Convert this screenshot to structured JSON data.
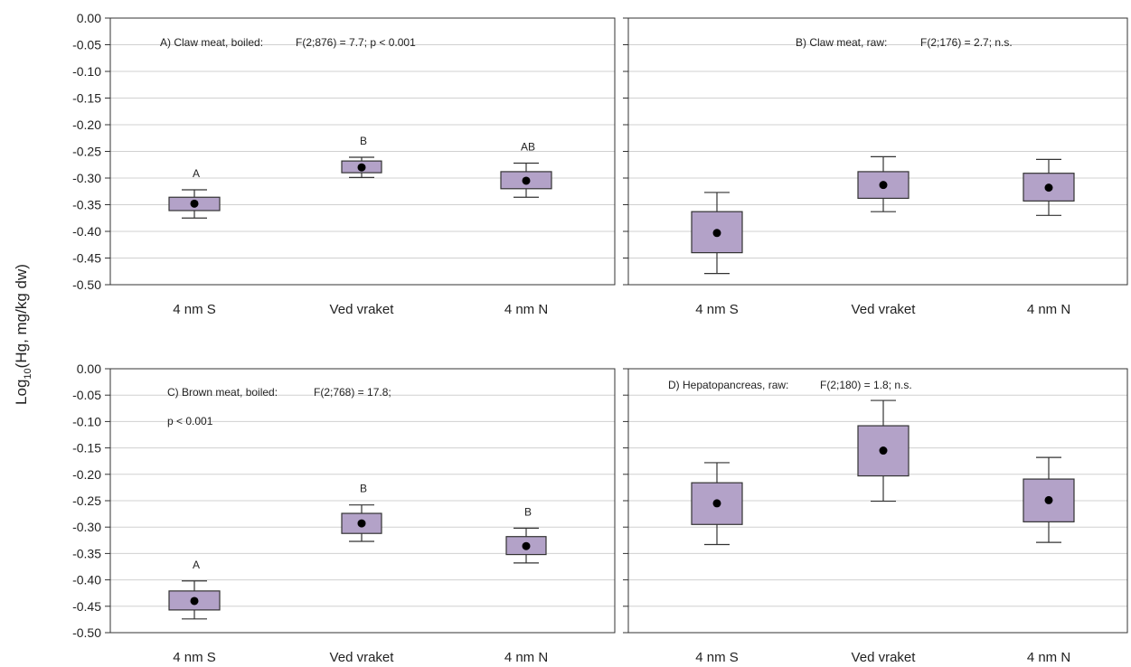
{
  "chart_data": {
    "type": "box",
    "ylabel": {
      "prefix": "Log",
      "sub": "10",
      "suffix": "(Hg, mg/kg dw)"
    },
    "ylim": [
      -0.5,
      0.0
    ],
    "yticks": [
      "0.00",
      "-0.05",
      "-0.10",
      "-0.15",
      "-0.20",
      "-0.25",
      "-0.30",
      "-0.35",
      "-0.40",
      "-0.45",
      "-0.50"
    ],
    "grid": true,
    "colors": {
      "box": "#b3a2c8",
      "line": "#333333",
      "grid": "#d0d0d0"
    },
    "panels": [
      {
        "id": "A",
        "annotation_label": "A) Claw meat, boiled:",
        "annotation_stats": "F(2;876) = 7.7; p < 0.001",
        "annotation_line2": "",
        "categories": [
          "4 nm S",
          "Ved vraket",
          "4 nm N"
        ],
        "groups": [
          {
            "mean": -0.348,
            "box": [
              -0.361,
              -0.336
            ],
            "whisker": [
              -0.375,
              -0.322
            ],
            "letter": "A"
          },
          {
            "mean": -0.28,
            "box": [
              -0.29,
              -0.268
            ],
            "whisker": [
              -0.299,
              -0.261
            ],
            "letter": "B"
          },
          {
            "mean": -0.305,
            "box": [
              -0.32,
              -0.288
            ],
            "whisker": [
              -0.336,
              -0.272
            ],
            "letter": "AB"
          }
        ]
      },
      {
        "id": "B",
        "annotation_label": "B) Claw meat, raw:",
        "annotation_stats": "F(2;176) = 2.7; n.s.",
        "annotation_line2": "",
        "categories": [
          "4 nm S",
          "Ved vraket",
          "4 nm N"
        ],
        "groups": [
          {
            "mean": -0.403,
            "box": [
              -0.44,
              -0.363
            ],
            "whisker": [
              -0.479,
              -0.327
            ],
            "letter": ""
          },
          {
            "mean": -0.313,
            "box": [
              -0.338,
              -0.288
            ],
            "whisker": [
              -0.363,
              -0.26
            ],
            "letter": ""
          },
          {
            "mean": -0.318,
            "box": [
              -0.343,
              -0.291
            ],
            "whisker": [
              -0.37,
              -0.265
            ],
            "letter": ""
          }
        ]
      },
      {
        "id": "C",
        "annotation_label": "C) Brown meat, boiled:",
        "annotation_stats": "F(2;768) = 17.8;",
        "annotation_line2": "p < 0.001",
        "categories": [
          "4 nm S",
          "Ved vraket",
          "4 nm N"
        ],
        "groups": [
          {
            "mean": -0.44,
            "box": [
              -0.457,
              -0.421
            ],
            "whisker": [
              -0.474,
              -0.402
            ],
            "letter": "A"
          },
          {
            "mean": -0.293,
            "box": [
              -0.312,
              -0.274
            ],
            "whisker": [
              -0.327,
              -0.258
            ],
            "letter": "B"
          },
          {
            "mean": -0.336,
            "box": [
              -0.352,
              -0.318
            ],
            "whisker": [
              -0.368,
              -0.302
            ],
            "letter": "B"
          }
        ]
      },
      {
        "id": "D",
        "annotation_label": "D) Hepatopancreas, raw:",
        "annotation_stats": "F(2;180) = 1.8; n.s.",
        "annotation_line2": "",
        "categories": [
          "4 nm S",
          "Ved vraket",
          "4 nm N"
        ],
        "groups": [
          {
            "mean": -0.255,
            "box": [
              -0.295,
              -0.216
            ],
            "whisker": [
              -0.333,
              -0.178
            ],
            "letter": ""
          },
          {
            "mean": -0.155,
            "box": [
              -0.203,
              -0.108
            ],
            "whisker": [
              -0.251,
              -0.06
            ],
            "letter": ""
          },
          {
            "mean": -0.249,
            "box": [
              -0.29,
              -0.209
            ],
            "whisker": [
              -0.329,
              -0.168
            ],
            "letter": ""
          }
        ]
      }
    ]
  }
}
